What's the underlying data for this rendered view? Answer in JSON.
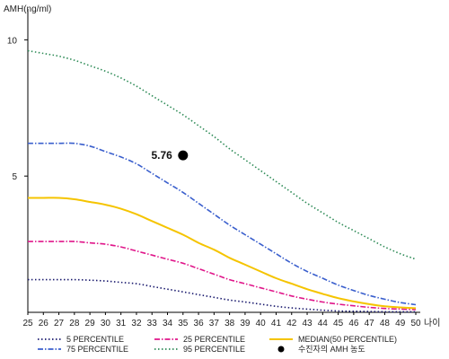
{
  "chart_data": {
    "type": "line",
    "ylabel": "AMH(ng/ml)",
    "xlabel": "나이",
    "x": [
      25,
      26,
      27,
      28,
      29,
      30,
      31,
      32,
      33,
      34,
      35,
      36,
      37,
      38,
      39,
      40,
      41,
      42,
      43,
      44,
      45,
      46,
      47,
      48,
      49,
      50
    ],
    "ylim": [
      0,
      11
    ],
    "xlim": [
      25,
      50
    ],
    "yticks": [
      5,
      10
    ],
    "grid": false,
    "series": [
      {
        "name": "5 PERCENTILE",
        "color": "#1a1a6e",
        "dash": "dot",
        "values": [
          1.2,
          1.2,
          1.2,
          1.2,
          1.18,
          1.15,
          1.1,
          1.05,
          0.95,
          0.85,
          0.75,
          0.65,
          0.55,
          0.45,
          0.38,
          0.3,
          0.22,
          0.16,
          0.12,
          0.08,
          0.05,
          0.04,
          0.03,
          0.02,
          0.02,
          0.02
        ]
      },
      {
        "name": "25 PERCENTILE",
        "color": "#e0168a",
        "dash": "dashdot",
        "values": [
          2.6,
          2.6,
          2.6,
          2.6,
          2.55,
          2.5,
          2.4,
          2.25,
          2.1,
          1.95,
          1.8,
          1.6,
          1.4,
          1.2,
          1.05,
          0.9,
          0.75,
          0.6,
          0.48,
          0.38,
          0.3,
          0.24,
          0.18,
          0.14,
          0.12,
          0.1
        ]
      },
      {
        "name": "MEDIAN(50 PERCENTILE)",
        "color": "#f5c400",
        "dash": "solid",
        "values": [
          4.2,
          4.2,
          4.2,
          4.15,
          4.05,
          3.95,
          3.8,
          3.6,
          3.35,
          3.1,
          2.85,
          2.55,
          2.3,
          2.0,
          1.75,
          1.5,
          1.25,
          1.05,
          0.85,
          0.68,
          0.52,
          0.4,
          0.3,
          0.22,
          0.18,
          0.15
        ]
      },
      {
        "name": "75 PERCENTILE",
        "color": "#3a5fcd",
        "dash": "dashdot",
        "values": [
          6.2,
          6.2,
          6.2,
          6.2,
          6.1,
          5.9,
          5.7,
          5.45,
          5.1,
          4.75,
          4.4,
          4.0,
          3.6,
          3.2,
          2.85,
          2.5,
          2.15,
          1.8,
          1.5,
          1.25,
          1.0,
          0.8,
          0.62,
          0.48,
          0.36,
          0.28
        ]
      },
      {
        "name": "95 PERCENTILE",
        "color": "#2e8b57",
        "dash": "dot",
        "values": [
          9.6,
          9.5,
          9.4,
          9.25,
          9.05,
          8.85,
          8.6,
          8.3,
          7.95,
          7.6,
          7.25,
          6.85,
          6.45,
          6.0,
          5.6,
          5.2,
          4.8,
          4.4,
          4.0,
          3.65,
          3.3,
          3.0,
          2.7,
          2.4,
          2.15,
          1.95
        ]
      }
    ],
    "points": [
      {
        "name": "수진자의 AMH 농도",
        "x": 35,
        "y": 5.76,
        "label": "5.76",
        "color": "#000000"
      }
    ],
    "legend_position": "bottom"
  }
}
